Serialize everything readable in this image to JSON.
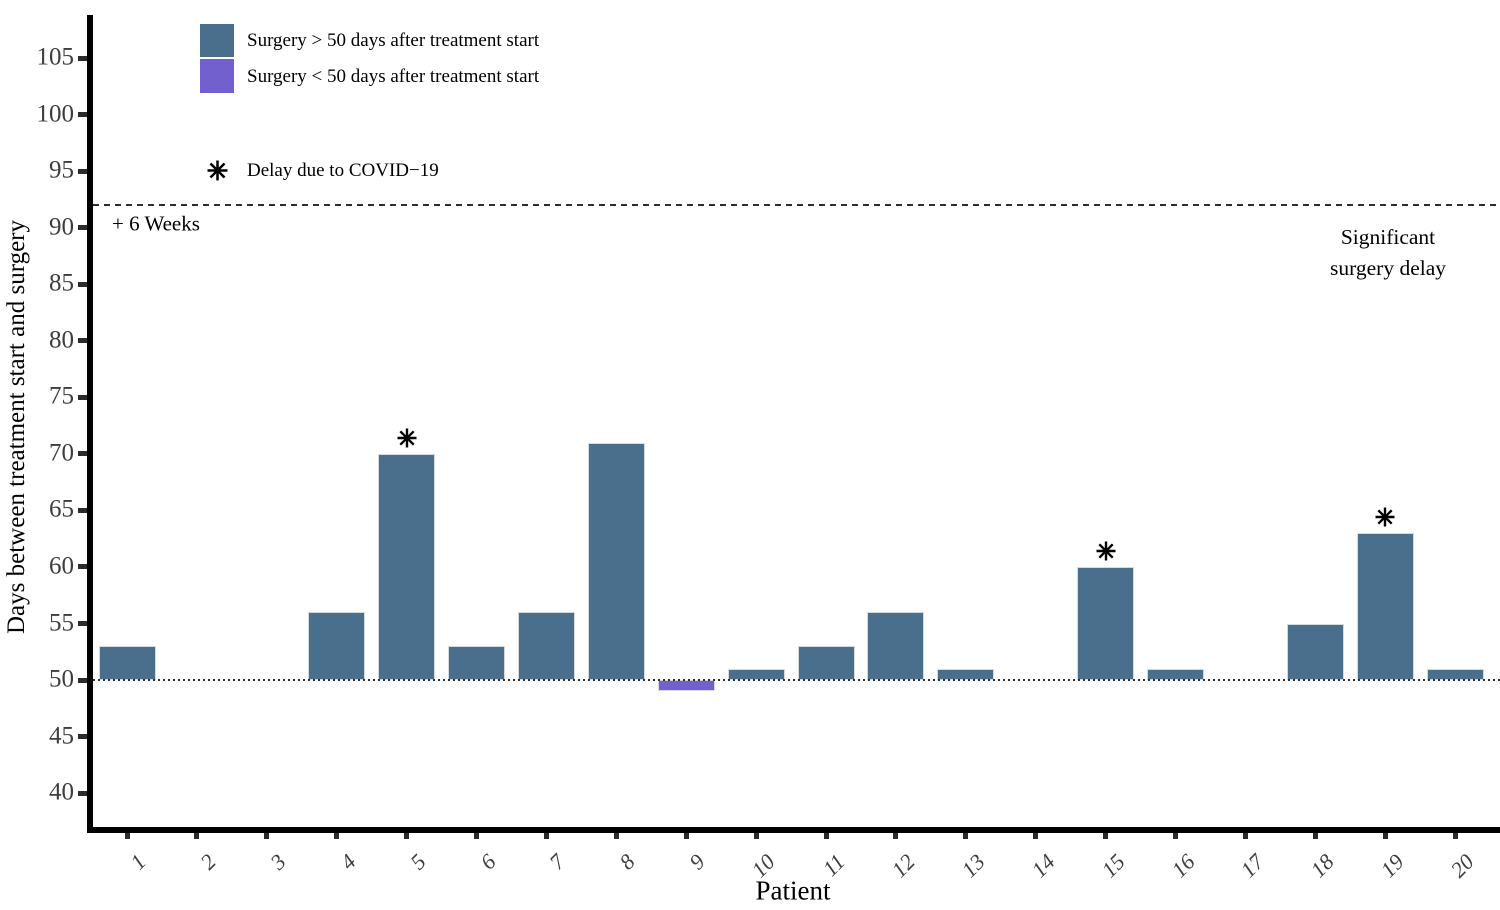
{
  "chart_data": {
    "type": "bar",
    "title": "",
    "xlabel": "Patient",
    "ylabel": "Days between treatment start and surgery",
    "categories": [
      "1",
      "2",
      "3",
      "4",
      "5",
      "6",
      "7",
      "8",
      "9",
      "10",
      "11",
      "12",
      "13",
      "14",
      "15",
      "16",
      "17",
      "18",
      "19",
      "20"
    ],
    "values": [
      53,
      50,
      50,
      56,
      70,
      53,
      56,
      71,
      49,
      51,
      53,
      56,
      51,
      50,
      60,
      51,
      50,
      55,
      63,
      51
    ],
    "bar_baseline": 50,
    "covid_delay_patients": [
      "5",
      "15",
      "19"
    ],
    "yticks": [
      40,
      45,
      50,
      55,
      60,
      65,
      70,
      75,
      80,
      85,
      90,
      95,
      100,
      105
    ],
    "ylim": [
      36.5,
      108.8
    ],
    "grid": false,
    "legend_position": "top-left",
    "reference_lines": [
      {
        "value": 92,
        "style": "dashed"
      },
      {
        "value": 50,
        "style": "dotted"
      }
    ],
    "annotations": {
      "six_weeks": "+ 6 Weeks",
      "significant_delay_lines": [
        "Significant",
        "surgery delay"
      ]
    },
    "legend": {
      "above_label": "Surgery > 50 days after treatment start",
      "below_label": "Surgery < 50 days after treatment start",
      "covid_label": "Delay due to COVID−19"
    },
    "colors": {
      "bar_above": "#4A6F8C",
      "bar_below": "#7160CE",
      "bar_border": "#D5DADE",
      "axis": "#000000",
      "tick_label": "#3D3D3D",
      "ref_line": "#2E2E2E"
    }
  }
}
